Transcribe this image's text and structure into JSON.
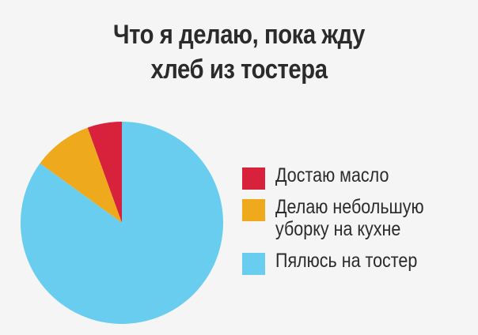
{
  "title_lines": [
    "Что я делаю, пока жду",
    "хлеб из тостера"
  ],
  "chart_data": {
    "type": "pie",
    "title": "Что я делаю, пока жду хлеб из тостера",
    "slices": [
      {
        "label": "Достаю масло",
        "label_lines": [
          "Достаю масло"
        ],
        "value": 5.5,
        "color": "#d8213a"
      },
      {
        "label": "Делаю небольшую уборку на кухне",
        "label_lines": [
          "Делаю небольшую",
          "уборку на кухне"
        ],
        "value": 9.5,
        "color": "#efa91c"
      },
      {
        "label": "Пялюсь на тостер",
        "label_lines": [
          "Пялюсь на тостер"
        ],
        "value": 85,
        "color": "#69cdef"
      }
    ],
    "legend": "right"
  }
}
